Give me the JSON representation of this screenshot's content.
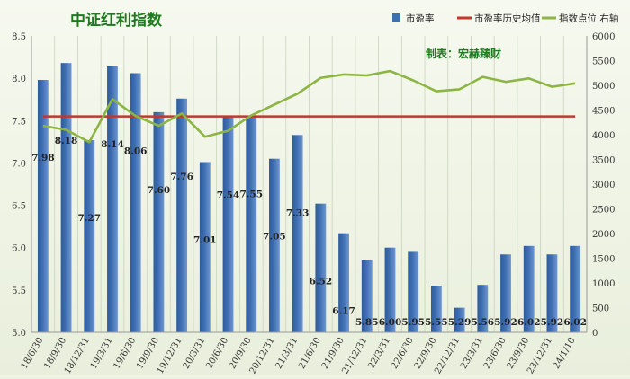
{
  "chart_data": {
    "type": "bar",
    "title": "中证红利指数",
    "credit": "制表：宏赫臻财",
    "categories": [
      "18/6/30",
      "18/9/30",
      "18/12/31",
      "19/3/31",
      "19/6/30",
      "19/9/30",
      "19/12/31",
      "20/3/31",
      "20/6/30",
      "20/9/30",
      "20/12/31",
      "21/3/31",
      "21/6/30",
      "21/9/30",
      "21/12/31",
      "22/3/31",
      "22/6/30",
      "22/9/30",
      "22/12/31",
      "23/3/31",
      "23/6/30",
      "23/9/30",
      "23/12/31",
      "24/1/10"
    ],
    "series": [
      {
        "name": "市盈率",
        "type": "bar",
        "axis": "left",
        "color": "#3f6fb3",
        "values": [
          7.98,
          8.18,
          7.27,
          8.14,
          8.06,
          7.6,
          7.76,
          7.01,
          7.54,
          7.55,
          7.05,
          7.33,
          6.52,
          6.17,
          5.85,
          6.0,
          5.95,
          5.55,
          5.29,
          5.56,
          5.92,
          6.02,
          5.92,
          6.02
        ]
      },
      {
        "name": "市盈率历史均值",
        "type": "line",
        "axis": "left",
        "color": "#c0392b",
        "values": [
          7.55,
          7.55,
          7.55,
          7.55,
          7.55,
          7.55,
          7.55,
          7.55,
          7.55,
          7.55,
          7.55,
          7.55,
          7.55,
          7.55,
          7.55,
          7.55,
          7.55,
          7.55,
          7.55,
          7.55,
          7.55,
          7.55,
          7.55,
          7.55
        ]
      },
      {
        "name": "指数点位 右轴",
        "type": "line",
        "axis": "right",
        "color": "#8cb543",
        "values": [
          4180,
          4100,
          3850,
          4720,
          4380,
          4180,
          4430,
          3960,
          4080,
          4390,
          4610,
          4830,
          5150,
          5220,
          5200,
          5290,
          5100,
          4880,
          4920,
          5170,
          5070,
          5140,
          4970,
          5040
        ]
      }
    ],
    "ylim": [
      5.0,
      8.5
    ],
    "yticks": [
      "5.0",
      "5.5",
      "6.0",
      "6.5",
      "7.0",
      "7.5",
      "8.0",
      "8.5"
    ],
    "y2lim": [
      0,
      6000
    ],
    "y2ticks": [
      "0",
      "500",
      "1000",
      "1500",
      "2000",
      "2500",
      "3000",
      "3500",
      "4000",
      "4500",
      "5000",
      "5500",
      "6000"
    ],
    "grid": "vertical",
    "legend_position": "top-right"
  }
}
